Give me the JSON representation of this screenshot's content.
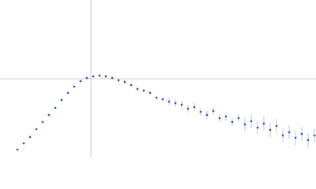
{
  "chart_data": {
    "type": "scatter",
    "color": "#3a64b8",
    "grid_color": "#cccccc",
    "xlim": [
      0,
      1
    ],
    "ylim": [
      -1,
      1
    ],
    "reference_lines": {
      "x": 0.2875,
      "y": 0
    },
    "x": [
      0.055,
      0.075,
      0.095,
      0.115,
      0.135,
      0.155,
      0.175,
      0.195,
      0.215,
      0.235,
      0.255,
      0.275,
      0.295,
      0.315,
      0.335,
      0.355,
      0.375,
      0.395,
      0.415,
      0.435,
      0.455,
      0.475,
      0.495,
      0.515,
      0.535,
      0.555,
      0.575,
      0.595,
      0.615,
      0.635,
      0.655,
      0.675,
      0.695,
      0.715,
      0.735,
      0.755,
      0.775,
      0.795,
      0.815,
      0.835,
      0.855,
      0.875,
      0.895,
      0.915,
      0.935,
      0.955,
      0.975,
      0.995
    ],
    "values": [
      -0.9,
      -0.82,
      -0.74,
      -0.64,
      -0.55,
      -0.46,
      -0.37,
      -0.27,
      -0.18,
      -0.1,
      -0.03,
      0.01,
      0.03,
      0.04,
      0.03,
      0.01,
      -0.02,
      -0.04,
      -0.08,
      -0.13,
      -0.15,
      -0.18,
      -0.24,
      -0.26,
      -0.29,
      -0.31,
      -0.33,
      -0.38,
      -0.36,
      -0.42,
      -0.46,
      -0.41,
      -0.5,
      -0.48,
      -0.55,
      -0.5,
      -0.58,
      -0.54,
      -0.62,
      -0.57,
      -0.65,
      -0.6,
      -0.72,
      -0.68,
      -0.75,
      -0.7,
      -0.78,
      -0.72
    ],
    "errors": [
      0.005,
      0.005,
      0.005,
      0.005,
      0.005,
      0.005,
      0.005,
      0.005,
      0.005,
      0.005,
      0.005,
      0.005,
      0.02,
      0.02,
      0.02,
      0.02,
      0.02,
      0.02,
      0.02,
      0.02,
      0.02,
      0.02,
      0.02,
      0.02,
      0.05,
      0.05,
      0.05,
      0.05,
      0.05,
      0.05,
      0.05,
      0.05,
      0.05,
      0.05,
      0.05,
      0.05,
      0.09,
      0.09,
      0.09,
      0.09,
      0.09,
      0.09,
      0.09,
      0.09,
      0.09,
      0.09,
      0.09,
      0.09
    ]
  }
}
